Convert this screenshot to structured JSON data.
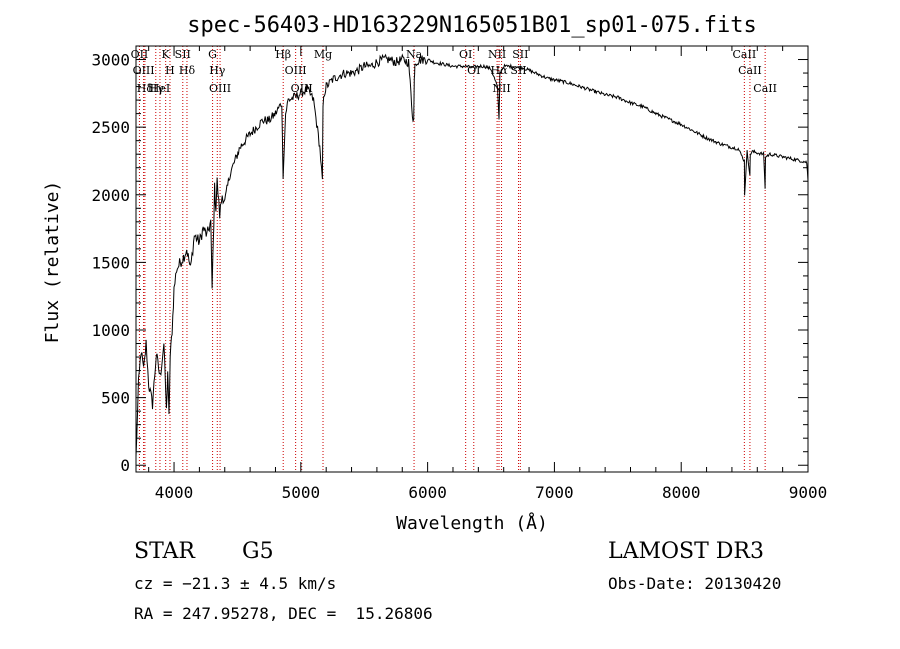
{
  "chart_data": {
    "type": "line",
    "title": "spec-56403-HD163229N165051B01_sp01-075.fits",
    "xlabel": "Wavelength (Å)",
    "ylabel": "Flux (relative)",
    "xlim": [
      3700,
      9000
    ],
    "ylim": [
      -50,
      3100
    ],
    "xticks": [
      4000,
      5000,
      6000,
      7000,
      8000,
      9000
    ],
    "yticks": [
      0,
      500,
      1000,
      1500,
      2000,
      2500,
      3000
    ],
    "grid": false,
    "series": [
      {
        "name": "flux",
        "x": [
          3700,
          3720,
          3740,
          3760,
          3780,
          3800,
          3830,
          3860,
          3890,
          3920,
          3940,
          3950,
          3960,
          3970,
          3985,
          4000,
          4020,
          4050,
          4080,
          4100,
          4130,
          4160,
          4200,
          4230,
          4260,
          4290,
          4300,
          4320,
          4330,
          4340,
          4360,
          4380,
          4400,
          4440,
          4480,
          4520,
          4560,
          4600,
          4650,
          4700,
          4750,
          4800,
          4850,
          4860,
          4880,
          4900,
          4950,
          5000,
          5050,
          5100,
          5150,
          5170,
          5175,
          5185,
          5200,
          5250,
          5300,
          5350,
          5400,
          5450,
          5500,
          5550,
          5600,
          5650,
          5700,
          5750,
          5800,
          5850,
          5880,
          5890,
          5895,
          5900,
          5950,
          6000,
          6050,
          6100,
          6150,
          6200,
          6250,
          6300,
          6350,
          6400,
          6450,
          6500,
          6550,
          6563,
          6570,
          6600,
          6650,
          6700,
          6750,
          6800,
          6850,
          6900,
          6950,
          7000,
          7100,
          7200,
          7300,
          7400,
          7500,
          7600,
          7700,
          7800,
          7900,
          8000,
          8100,
          8200,
          8300,
          8400,
          8450,
          8498,
          8500,
          8520,
          8542,
          8545,
          8560,
          8600,
          8650,
          8662,
          8665,
          8700,
          8750,
          8800,
          8850,
          8900,
          8950,
          8990,
          9000
        ],
        "values": [
          50,
          600,
          850,
          700,
          900,
          600,
          450,
          820,
          650,
          900,
          400,
          700,
          350,
          800,
          1000,
          1300,
          1450,
          1500,
          1550,
          1600,
          1450,
          1700,
          1650,
          1750,
          1700,
          1800,
          1300,
          2050,
          1900,
          2100,
          1850,
          2000,
          1950,
          2150,
          2250,
          2350,
          2400,
          2450,
          2500,
          2550,
          2550,
          2600,
          2680,
          2150,
          2600,
          2700,
          2720,
          2750,
          2780,
          2700,
          2350,
          2100,
          2650,
          2750,
          2800,
          2850,
          2880,
          2900,
          2900,
          2920,
          2950,
          2950,
          2980,
          3000,
          3000,
          2980,
          3000,
          2980,
          2600,
          2550,
          2850,
          2980,
          3000,
          3000,
          2980,
          2970,
          2960,
          2950,
          2950,
          2950,
          2940,
          2950,
          2950,
          2930,
          2800,
          2550,
          2900,
          2950,
          2950,
          2940,
          2940,
          2920,
          2900,
          2880,
          2860,
          2850,
          2830,
          2800,
          2770,
          2740,
          2720,
          2680,
          2650,
          2600,
          2560,
          2520,
          2470,
          2420,
          2380,
          2350,
          2340,
          2250,
          2000,
          2320,
          2150,
          2300,
          2320,
          2310,
          2300,
          2050,
          2280,
          2300,
          2290,
          2280,
          2270,
          2260,
          2250,
          2240,
          2100
        ]
      }
    ],
    "reference_lines": [
      {
        "label": "Hδ",
        "x": 3770
      },
      {
        "label": "OII",
        "x": 3727
      },
      {
        "label": "OIII",
        "x": 3760
      },
      {
        "label": "K",
        "x": 3934
      },
      {
        "label": "HeI",
        "x": 3889
      },
      {
        "label": "Hγ",
        "x": 3856
      },
      {
        "label": "H",
        "x": 3968
      },
      {
        "label": "SII",
        "x": 4069
      },
      {
        "label": "Hδ",
        "x": 4102
      },
      {
        "label": "OIII",
        "x": 4363
      },
      {
        "label": "Hγ",
        "x": 4341
      },
      {
        "label": "G",
        "x": 4304
      },
      {
        "label": "Hβ",
        "x": 4861
      },
      {
        "label": "OIII",
        "x": 4959
      },
      {
        "label": "OIII",
        "x": 5007
      },
      {
        "label": "Mg",
        "x": 5175
      },
      {
        "label": "Na",
        "x": 5893
      },
      {
        "label": "OI",
        "x": 6300
      },
      {
        "label": "OI",
        "x": 6364
      },
      {
        "label": "Hα",
        "x": 6563
      },
      {
        "label": "NII",
        "x": 6548
      },
      {
        "label": "NII",
        "x": 6583
      },
      {
        "label": "SII",
        "x": 6717
      },
      {
        "label": "SII",
        "x": 6731
      },
      {
        "label": "CaII",
        "x": 8498
      },
      {
        "label": "CaII",
        "x": 8542
      },
      {
        "label": "CaII",
        "x": 8662
      }
    ]
  },
  "footer": {
    "object_type": "STAR",
    "subclass": "G5",
    "survey": "LAMOST DR3",
    "redshift": "cz = −21.3 ± 4.5 km/s",
    "obs_date": "Obs-Date: 20130420",
    "coords": "RA = 247.95278, DEC =  15.26806"
  },
  "colors": {
    "axes": "#000000",
    "spectrum": "#000000",
    "reference_line": "#cc0000",
    "background": "#ffffff"
  }
}
